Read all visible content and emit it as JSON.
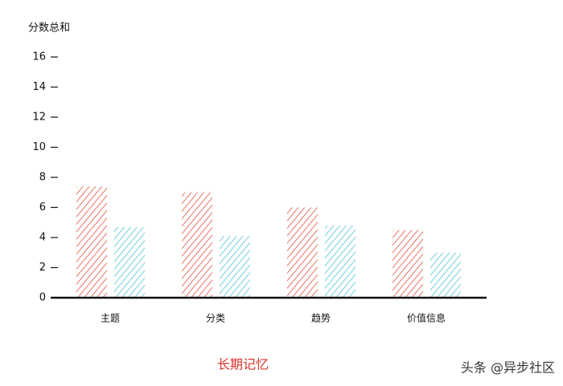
{
  "chart_data": {
    "type": "bar",
    "y_label": "分数总和",
    "categories": [
      "主题",
      "分类",
      "趋势",
      "价值信息"
    ],
    "series": [
      {
        "color": "#e0533a",
        "values": [
          7.4,
          7.0,
          6.0,
          4.5
        ]
      },
      {
        "color": "#4cc3d9",
        "values": [
          4.7,
          4.1,
          4.8,
          3.0
        ]
      }
    ],
    "ylim": [
      0,
      16
    ],
    "yticks": [
      0,
      2,
      4,
      6,
      8,
      10,
      12,
      14,
      16
    ],
    "hatch": true,
    "caption": "长期记忆",
    "watermark": "头条 @异步社区"
  }
}
